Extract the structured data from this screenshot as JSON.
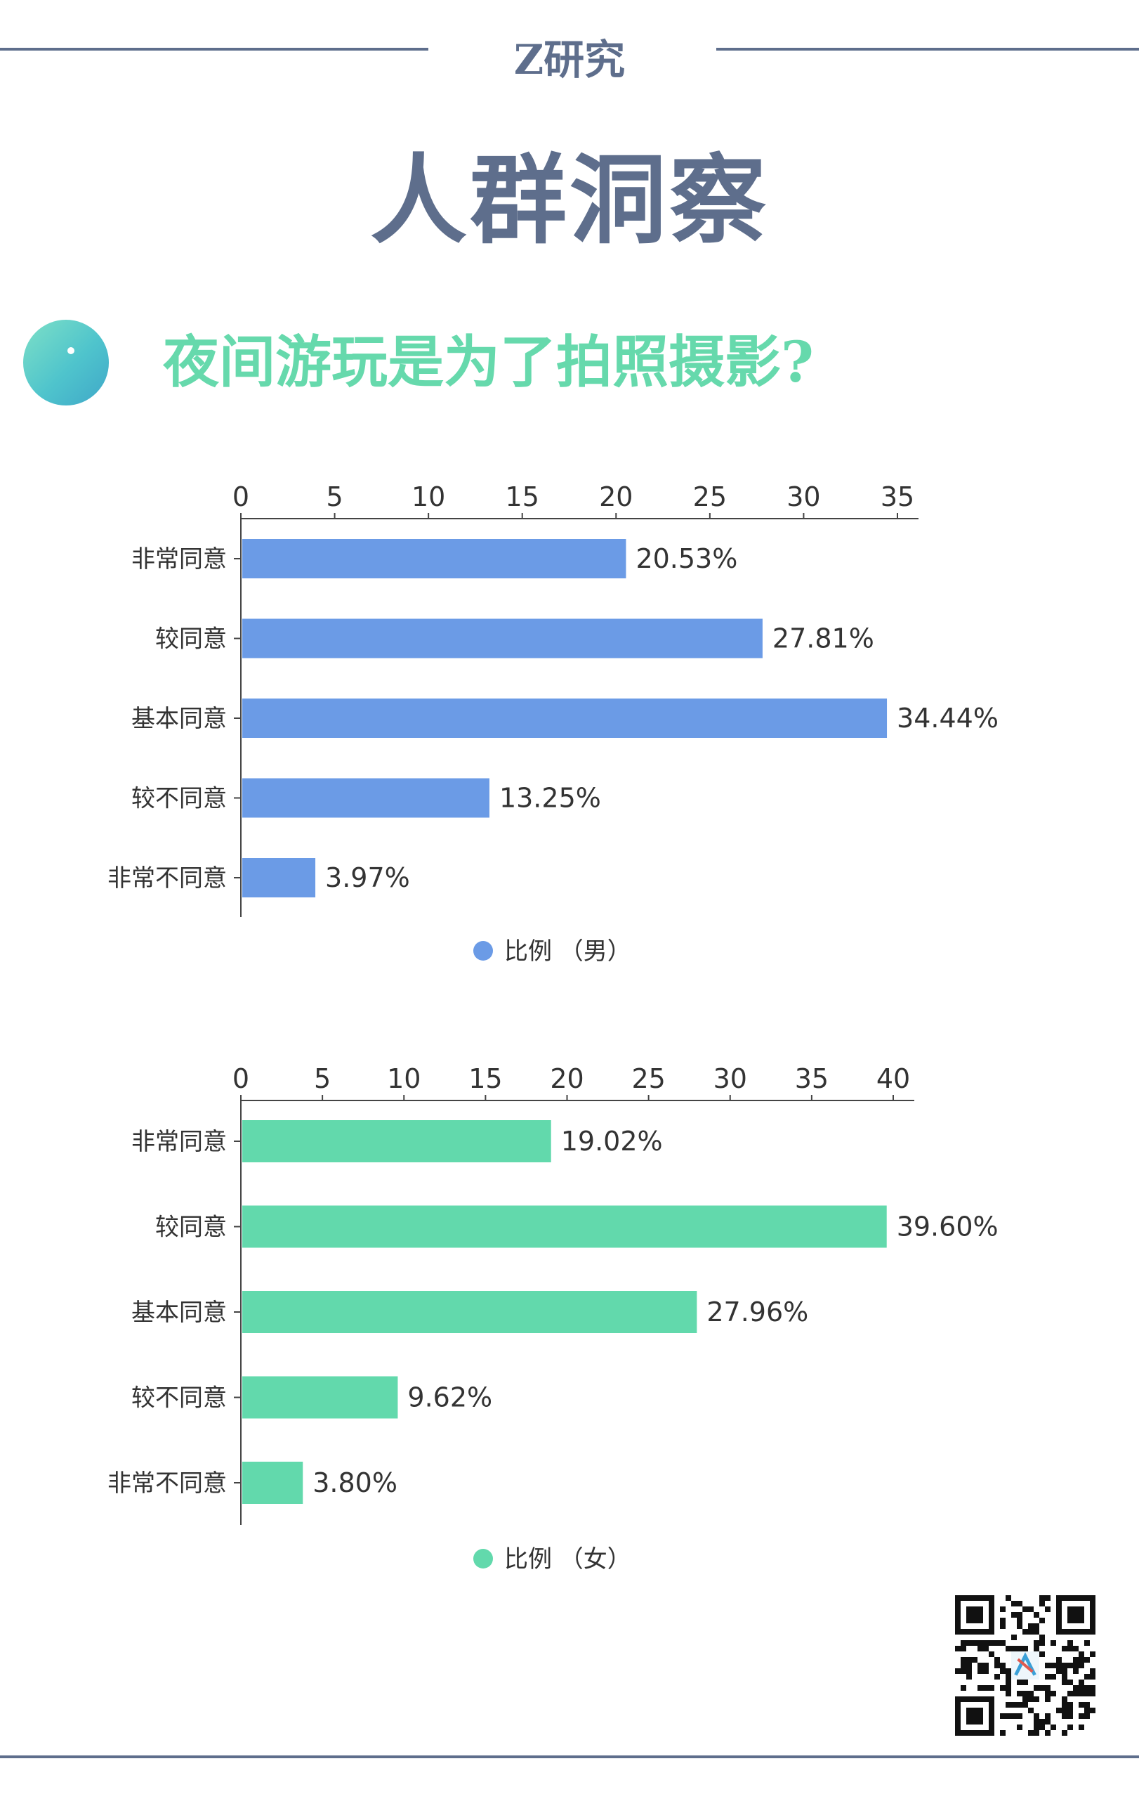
{
  "header": {
    "brand": "Z研究",
    "title": "人群洞察",
    "question": "夜间游玩是为了拍照摄影?"
  },
  "chart_data": [
    {
      "type": "bar",
      "orientation": "horizontal",
      "categories": [
        "非常同意",
        "较同意",
        "基本同意",
        "较不同意",
        "非常不同意"
      ],
      "series": [
        {
          "name": "比例 （男）",
          "values": [
            20.53,
            27.81,
            34.44,
            13.25,
            3.97
          ],
          "color": "#6b9be6"
        }
      ],
      "value_labels": [
        "20.53%",
        "27.81%",
        "34.44%",
        "13.25%",
        "3.97%"
      ],
      "xlim": [
        0,
        35
      ],
      "ticks": [
        0,
        5,
        10,
        15,
        20,
        25,
        30,
        35
      ],
      "axis_position": "top",
      "legend": "bottom-center",
      "grid": false
    },
    {
      "type": "bar",
      "orientation": "horizontal",
      "categories": [
        "非常同意",
        "较同意",
        "基本同意",
        "较不同意",
        "非常不同意"
      ],
      "series": [
        {
          "name": "比例 （女）",
          "values": [
            19.02,
            39.6,
            27.96,
            9.62,
            3.8
          ],
          "color": "#62d9ac"
        }
      ],
      "value_labels": [
        "19.02%",
        "39.60%",
        "27.96%",
        "9.62%",
        "3.80%"
      ],
      "xlim": [
        0,
        40
      ],
      "ticks": [
        0,
        5,
        10,
        15,
        20,
        25,
        30,
        35,
        40
      ],
      "axis_position": "top",
      "legend": "bottom-center",
      "grid": false
    }
  ],
  "colors": {
    "brand": "#5e6e8c",
    "accent": "#66d9ac"
  },
  "icons": [
    "gradient-orb-icon",
    "qr-code-icon"
  ]
}
